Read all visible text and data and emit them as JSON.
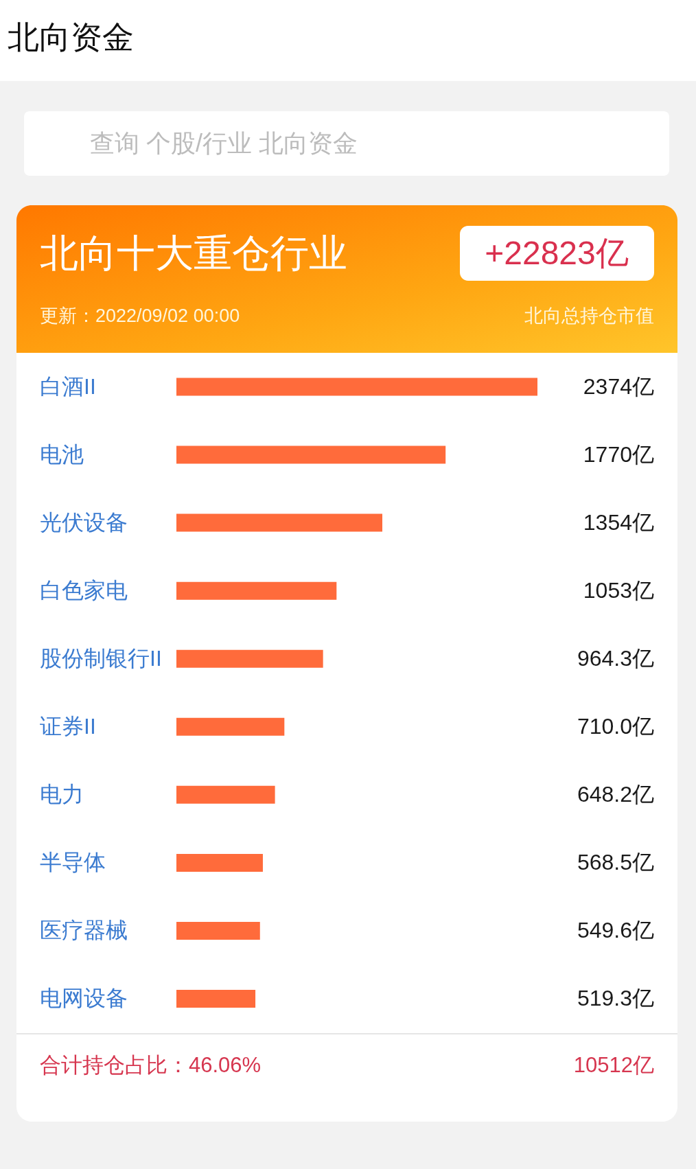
{
  "chart_data": {
    "type": "bar",
    "orientation": "horizontal",
    "title": "北向十大重仓行业",
    "subtitle": "更新：2022/09/02 00:00",
    "categories": [
      "白酒II",
      "电池",
      "光伏设备",
      "白色家电",
      "股份制银行II",
      "证券II",
      "电力",
      "半导体",
      "医疗器械",
      "电网设备"
    ],
    "values": [
      2374,
      1770,
      1354,
      1053,
      964.3,
      710.0,
      648.2,
      568.5,
      549.6,
      519.3
    ],
    "value_labels": [
      "2374亿",
      "1770亿",
      "1354亿",
      "1053亿",
      "964.3亿",
      "710.0亿",
      "648.2亿",
      "568.5亿",
      "549.6亿",
      "519.3亿"
    ],
    "color": "#ff6b3b",
    "tick_labels": "y",
    "annotations": [
      "北向资金",
      "查询 个股/行业 北向资金",
      "+22823亿",
      "北向总持仓市值",
      "合计持仓占比：46.06%",
      "10512亿"
    ]
  }
}
